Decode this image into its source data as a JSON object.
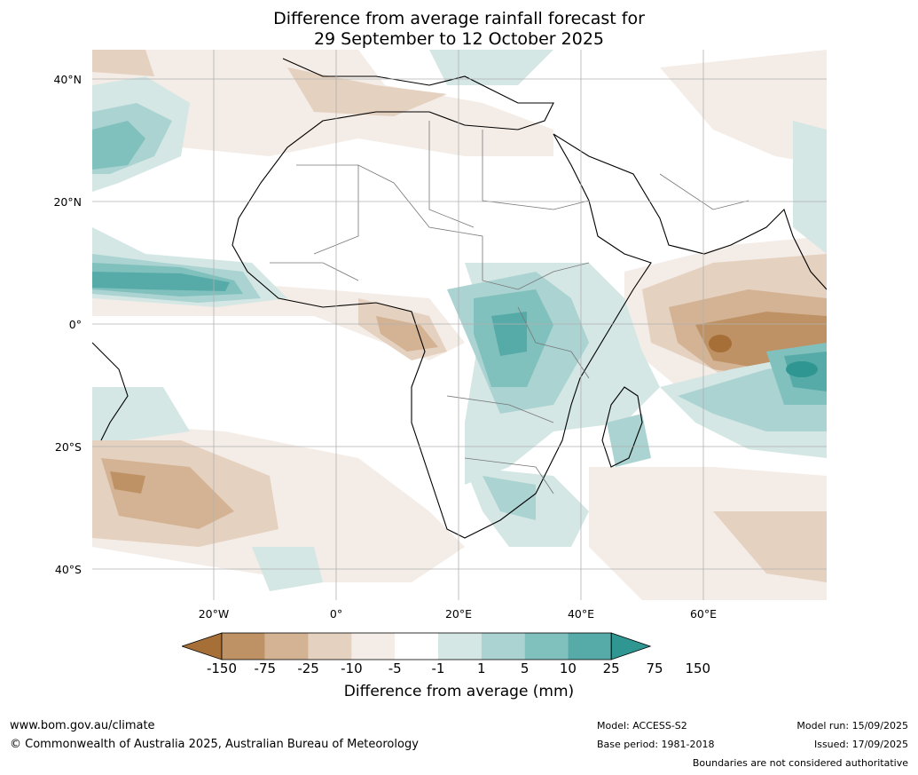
{
  "title": {
    "line1": "Difference from average rainfall forecast for",
    "line2": "29 September to 12 October 2025"
  },
  "lat_labels": [
    "40°N",
    "20°N",
    "0°",
    "20°S",
    "40°S"
  ],
  "lon_labels": [
    "20°W",
    "0°",
    "20°E",
    "40°E",
    "60°E"
  ],
  "colorbar": {
    "title": "Difference from average (mm)",
    "ticks": [
      "-150",
      "-75",
      "-25",
      "-10",
      "-5",
      "-1",
      "1",
      "5",
      "10",
      "25",
      "75",
      "150"
    ],
    "colors": [
      "#a66f38",
      "#bf9266",
      "#d3b394",
      "#e5d1bf",
      "#f4ece6",
      "#ffffff",
      "#d4e7e5",
      "#aad3d1",
      "#80c0bd",
      "#56aba8",
      "#2f9692"
    ]
  },
  "footer": {
    "website": "www.bom.gov.au/climate",
    "copyright": "© Commonwealth of Australia 2025, Australian Bureau of Meteorology",
    "model": "Model: ACCESS-S2",
    "base_period": "Base period: 1981-2018",
    "model_run": "Model run: 15/09/2025",
    "issued": "Issued: 17/09/2025",
    "disclaimer": "Boundaries are not considered authoritative"
  }
}
